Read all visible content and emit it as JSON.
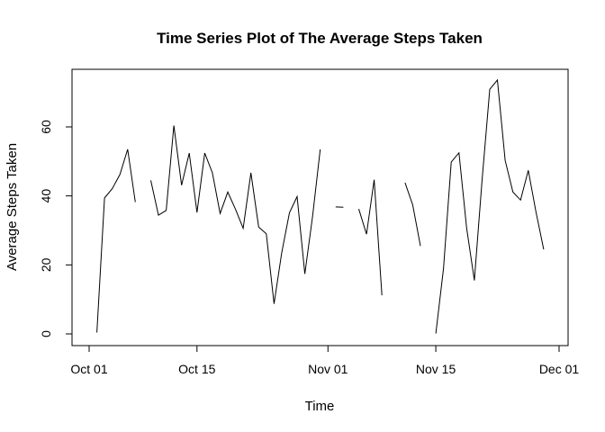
{
  "chart_data": {
    "type": "line",
    "title": "Time Series Plot of The Average Steps Taken",
    "xlabel": "Time",
    "ylabel": "Average Steps Taken",
    "x_ticks": [
      {
        "date": "2012-10-01",
        "label": "Oct 01"
      },
      {
        "date": "2012-10-15",
        "label": "Oct 15"
      },
      {
        "date": "2012-11-01",
        "label": "Nov 01"
      },
      {
        "date": "2012-11-15",
        "label": "Nov 15"
      },
      {
        "date": "2012-12-01",
        "label": "Dec 01"
      }
    ],
    "y_ticks": [
      0,
      20,
      40,
      60
    ],
    "xlim": [
      "2012-09-30",
      "2012-12-01"
    ],
    "ylim": [
      0,
      75
    ],
    "grid": false,
    "series": [
      {
        "color": "#000000",
        "points": [
          {
            "x": "2012-10-01",
            "y": null
          },
          {
            "x": "2012-10-02",
            "y": 0.4
          },
          {
            "x": "2012-10-03",
            "y": 39.4
          },
          {
            "x": "2012-10-04",
            "y": 42.1
          },
          {
            "x": "2012-10-05",
            "y": 46.2
          },
          {
            "x": "2012-10-06",
            "y": 53.5
          },
          {
            "x": "2012-10-07",
            "y": 38.2
          },
          {
            "x": "2012-10-08",
            "y": null
          },
          {
            "x": "2012-10-09",
            "y": 44.5
          },
          {
            "x": "2012-10-10",
            "y": 34.4
          },
          {
            "x": "2012-10-11",
            "y": 35.8
          },
          {
            "x": "2012-10-12",
            "y": 60.4
          },
          {
            "x": "2012-10-13",
            "y": 43.1
          },
          {
            "x": "2012-10-14",
            "y": 52.4
          },
          {
            "x": "2012-10-15",
            "y": 35.2
          },
          {
            "x": "2012-10-16",
            "y": 52.4
          },
          {
            "x": "2012-10-17",
            "y": 46.7
          },
          {
            "x": "2012-10-18",
            "y": 34.9
          },
          {
            "x": "2012-10-19",
            "y": 41.1
          },
          {
            "x": "2012-10-20",
            "y": 36.1
          },
          {
            "x": "2012-10-21",
            "y": 30.6
          },
          {
            "x": "2012-10-22",
            "y": 46.7
          },
          {
            "x": "2012-10-23",
            "y": 31.0
          },
          {
            "x": "2012-10-24",
            "y": 29.0
          },
          {
            "x": "2012-10-25",
            "y": 8.7
          },
          {
            "x": "2012-10-26",
            "y": 23.5
          },
          {
            "x": "2012-10-27",
            "y": 35.1
          },
          {
            "x": "2012-10-28",
            "y": 39.8
          },
          {
            "x": "2012-10-29",
            "y": 17.4
          },
          {
            "x": "2012-10-30",
            "y": 34.1
          },
          {
            "x": "2012-10-31",
            "y": 53.5
          },
          {
            "x": "2012-11-01",
            "y": null
          },
          {
            "x": "2012-11-02",
            "y": 36.8
          },
          {
            "x": "2012-11-03",
            "y": 36.7
          },
          {
            "x": "2012-11-04",
            "y": null
          },
          {
            "x": "2012-11-05",
            "y": 36.2
          },
          {
            "x": "2012-11-06",
            "y": 28.9
          },
          {
            "x": "2012-11-07",
            "y": 44.7
          },
          {
            "x": "2012-11-08",
            "y": 11.2
          },
          {
            "x": "2012-11-09",
            "y": null
          },
          {
            "x": "2012-11-10",
            "y": null
          },
          {
            "x": "2012-11-11",
            "y": 43.8
          },
          {
            "x": "2012-11-12",
            "y": 37.4
          },
          {
            "x": "2012-11-13",
            "y": 25.5
          },
          {
            "x": "2012-11-14",
            "y": null
          },
          {
            "x": "2012-11-15",
            "y": 0.1
          },
          {
            "x": "2012-11-16",
            "y": 18.9
          },
          {
            "x": "2012-11-17",
            "y": 49.8
          },
          {
            "x": "2012-11-18",
            "y": 52.5
          },
          {
            "x": "2012-11-19",
            "y": 30.7
          },
          {
            "x": "2012-11-20",
            "y": 15.5
          },
          {
            "x": "2012-11-21",
            "y": 44.4
          },
          {
            "x": "2012-11-22",
            "y": 70.9
          },
          {
            "x": "2012-11-23",
            "y": 73.6
          },
          {
            "x": "2012-11-24",
            "y": 50.3
          },
          {
            "x": "2012-11-25",
            "y": 41.1
          },
          {
            "x": "2012-11-26",
            "y": 38.8
          },
          {
            "x": "2012-11-27",
            "y": 47.4
          },
          {
            "x": "2012-11-28",
            "y": 35.4
          },
          {
            "x": "2012-11-29",
            "y": 24.5
          },
          {
            "x": "2012-11-30",
            "y": null
          }
        ]
      }
    ]
  }
}
